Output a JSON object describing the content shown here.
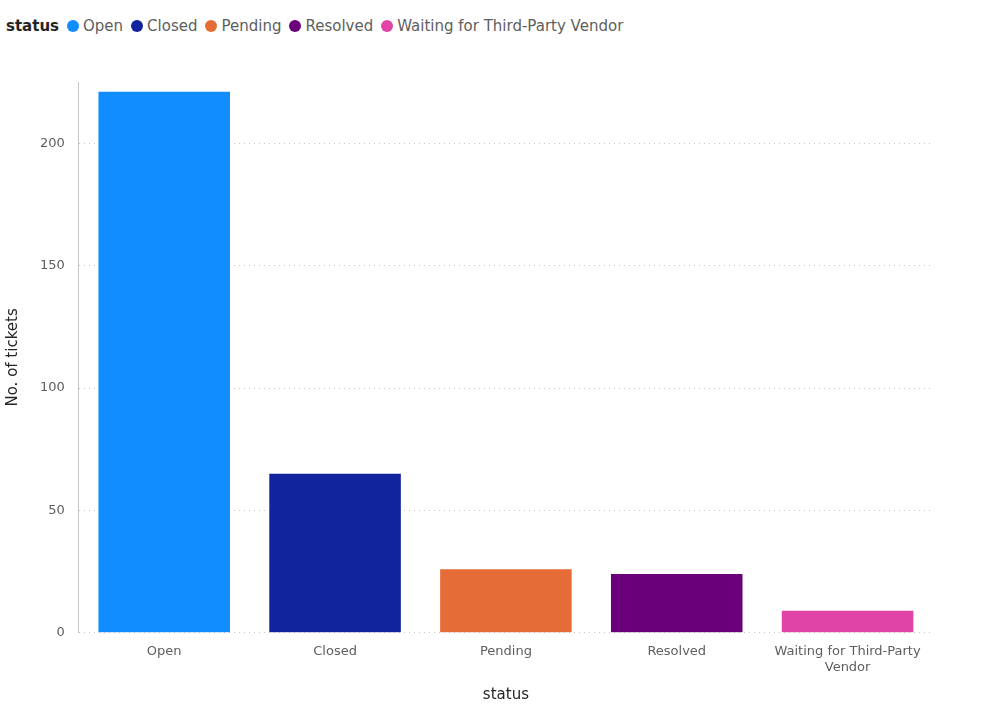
{
  "chart_data": {
    "type": "bar",
    "legend_title": "status",
    "x_label": "status",
    "y_label": "No. of tickets",
    "categories": [
      "Open",
      "Closed",
      "Pending",
      "Resolved",
      "Waiting for Third-Party Vendor"
    ],
    "values": [
      221,
      65,
      26,
      24,
      9
    ],
    "colors": [
      "#118dff",
      "#12239e",
      "#e66c37",
      "#6b007b",
      "#e044a7"
    ],
    "ylim": [
      0,
      225
    ],
    "yticks": [
      0,
      50,
      100,
      150,
      200
    ],
    "grid": true,
    "legend": "top-left"
  }
}
